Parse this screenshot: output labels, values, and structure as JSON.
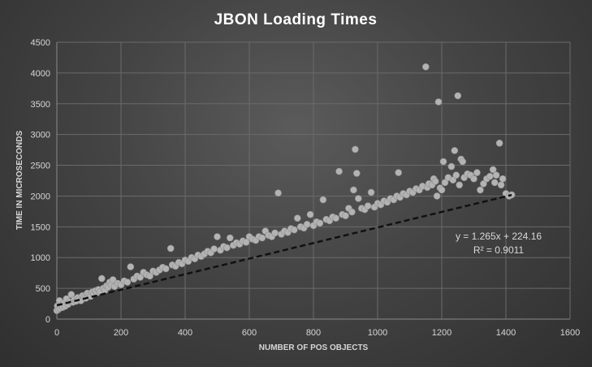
{
  "chart_data": {
    "type": "scatter",
    "title": "JBON  Loading  Times",
    "xlabel": "NUMBER OF POS OBJECTS",
    "ylabel": "TIME IN MICROSECONDS",
    "xlim": [
      0,
      1600
    ],
    "ylim": [
      0,
      4500
    ],
    "x_ticks": [
      0,
      200,
      400,
      600,
      800,
      1000,
      1200,
      1400,
      1600
    ],
    "y_ticks": [
      0,
      500,
      1000,
      1500,
      2000,
      2500,
      3000,
      3500,
      4000,
      4500
    ],
    "grid": true,
    "marker_color": "#b3b3b3",
    "trendline": {
      "slope": 1.265,
      "intercept": 224.16,
      "x_range": [
        0,
        1418
      ],
      "style": "dashed",
      "color": "#111111",
      "equation": "y = 1.265x + 224.16",
      "r_squared": "R² = 0.9011"
    },
    "points": [
      [
        0,
        140
      ],
      [
        2,
        215
      ],
      [
        5,
        160
      ],
      [
        8,
        300
      ],
      [
        10,
        180
      ],
      [
        14,
        230
      ],
      [
        18,
        190
      ],
      [
        22,
        260
      ],
      [
        26,
        210
      ],
      [
        30,
        330
      ],
      [
        35,
        240
      ],
      [
        40,
        280
      ],
      [
        45,
        400
      ],
      [
        50,
        275
      ],
      [
        55,
        320
      ],
      [
        60,
        290
      ],
      [
        65,
        350
      ],
      [
        70,
        330
      ],
      [
        75,
        300
      ],
      [
        80,
        380
      ],
      [
        85,
        360
      ],
      [
        90,
        340
      ],
      [
        95,
        420
      ],
      [
        100,
        390
      ],
      [
        105,
        370
      ],
      [
        110,
        440
      ],
      [
        115,
        410
      ],
      [
        120,
        460
      ],
      [
        125,
        430
      ],
      [
        130,
        480
      ],
      [
        135,
        450
      ],
      [
        140,
        660
      ],
      [
        145,
        500
      ],
      [
        150,
        470
      ],
      [
        155,
        540
      ],
      [
        160,
        520
      ],
      [
        165,
        600
      ],
      [
        170,
        560
      ],
      [
        175,
        640
      ],
      [
        180,
        530
      ],
      [
        190,
        580
      ],
      [
        200,
        560
      ],
      [
        210,
        620
      ],
      [
        220,
        600
      ],
      [
        230,
        850
      ],
      [
        240,
        650
      ],
      [
        250,
        700
      ],
      [
        260,
        680
      ],
      [
        270,
        760
      ],
      [
        280,
        720
      ],
      [
        290,
        700
      ],
      [
        300,
        780
      ],
      [
        310,
        760
      ],
      [
        320,
        800
      ],
      [
        330,
        840
      ],
      [
        340,
        820
      ],
      [
        355,
        1150
      ],
      [
        360,
        880
      ],
      [
        370,
        860
      ],
      [
        380,
        920
      ],
      [
        390,
        900
      ],
      [
        400,
        960
      ],
      [
        410,
        940
      ],
      [
        420,
        1000
      ],
      [
        430,
        980
      ],
      [
        440,
        1040
      ],
      [
        450,
        1020
      ],
      [
        460,
        1060
      ],
      [
        470,
        1100
      ],
      [
        480,
        1080
      ],
      [
        490,
        1140
      ],
      [
        500,
        1340
      ],
      [
        510,
        1120
      ],
      [
        520,
        1180
      ],
      [
        530,
        1160
      ],
      [
        540,
        1320
      ],
      [
        550,
        1200
      ],
      [
        560,
        1240
      ],
      [
        570,
        1220
      ],
      [
        580,
        1270
      ],
      [
        590,
        1250
      ],
      [
        600,
        1340
      ],
      [
        610,
        1300
      ],
      [
        620,
        1280
      ],
      [
        630,
        1340
      ],
      [
        640,
        1320
      ],
      [
        650,
        1430
      ],
      [
        660,
        1360
      ],
      [
        670,
        1340
      ],
      [
        680,
        1400
      ],
      [
        690,
        2050
      ],
      [
        700,
        1380
      ],
      [
        710,
        1430
      ],
      [
        720,
        1410
      ],
      [
        730,
        1470
      ],
      [
        740,
        1450
      ],
      [
        750,
        1640
      ],
      [
        760,
        1500
      ],
      [
        770,
        1480
      ],
      [
        780,
        1540
      ],
      [
        790,
        1700
      ],
      [
        800,
        1520
      ],
      [
        810,
        1580
      ],
      [
        820,
        1560
      ],
      [
        830,
        1940
      ],
      [
        840,
        1620
      ],
      [
        850,
        1600
      ],
      [
        860,
        1660
      ],
      [
        870,
        1640
      ],
      [
        880,
        2400
      ],
      [
        890,
        1700
      ],
      [
        900,
        1680
      ],
      [
        910,
        1800
      ],
      [
        920,
        1740
      ],
      [
        925,
        2100
      ],
      [
        930,
        2760
      ],
      [
        935,
        2370
      ],
      [
        940,
        1960
      ],
      [
        950,
        1800
      ],
      [
        960,
        1780
      ],
      [
        970,
        1840
      ],
      [
        980,
        2060
      ],
      [
        990,
        1820
      ],
      [
        1000,
        1880
      ],
      [
        1010,
        1860
      ],
      [
        1020,
        1920
      ],
      [
        1030,
        1900
      ],
      [
        1040,
        1960
      ],
      [
        1050,
        1940
      ],
      [
        1060,
        2000
      ],
      [
        1065,
        2380
      ],
      [
        1070,
        1980
      ],
      [
        1080,
        2040
      ],
      [
        1090,
        2020
      ],
      [
        1100,
        2080
      ],
      [
        1110,
        2060
      ],
      [
        1120,
        2120
      ],
      [
        1130,
        2100
      ],
      [
        1140,
        2160
      ],
      [
        1150,
        4100
      ],
      [
        1155,
        2140
      ],
      [
        1160,
        2200
      ],
      [
        1170,
        2180
      ],
      [
        1175,
        2280
      ],
      [
        1180,
        2240
      ],
      [
        1185,
        2000
      ],
      [
        1190,
        3530
      ],
      [
        1195,
        2130
      ],
      [
        1200,
        2100
      ],
      [
        1205,
        2560
      ],
      [
        1210,
        2220
      ],
      [
        1220,
        2300
      ],
      [
        1230,
        2480
      ],
      [
        1235,
        2260
      ],
      [
        1240,
        2740
      ],
      [
        1245,
        2340
      ],
      [
        1250,
        3630
      ],
      [
        1255,
        2180
      ],
      [
        1260,
        2600
      ],
      [
        1265,
        2560
      ],
      [
        1270,
        2300
      ],
      [
        1280,
        2360
      ],
      [
        1290,
        2340
      ],
      [
        1300,
        2280
      ],
      [
        1310,
        2380
      ],
      [
        1320,
        2100
      ],
      [
        1330,
        2200
      ],
      [
        1340,
        2280
      ],
      [
        1350,
        2320
      ],
      [
        1360,
        2430
      ],
      [
        1365,
        2220
      ],
      [
        1370,
        2340
      ],
      [
        1380,
        2860
      ],
      [
        1385,
        2180
      ],
      [
        1390,
        2280
      ],
      [
        1400,
        2040
      ],
      [
        1410,
        2000
      ],
      [
        1418,
        2020
      ]
    ]
  }
}
